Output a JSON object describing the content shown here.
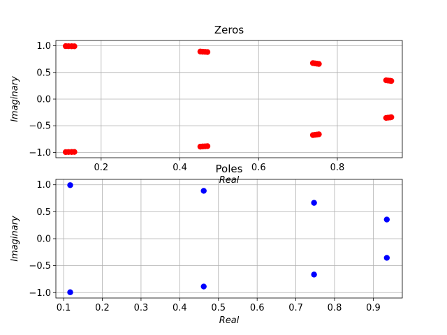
{
  "chart_data": [
    {
      "type": "scatter",
      "title": "Zeros",
      "xlabel": "Real",
      "ylabel": "Imaginary",
      "xlim": [
        0.085,
        0.965
      ],
      "ylim": [
        -1.1,
        1.1
      ],
      "xticks": [
        0.2,
        0.4,
        0.6,
        0.8
      ],
      "xtick_labels": [
        "0.2",
        "0.4",
        "0.6",
        "0.8"
      ],
      "yticks": [
        -1.0,
        -0.5,
        0.0,
        0.5,
        1.0
      ],
      "ytick_labels": [
        "−1.0",
        "−0.5",
        "0.0",
        "0.5",
        "1.0"
      ],
      "grid": true,
      "series": [
        {
          "color": "#ff0000",
          "points": [
            [
              0.11,
              0.994
            ],
            [
              0.117,
              0.993
            ],
            [
              0.125,
              0.992
            ],
            [
              0.132,
              0.991
            ],
            [
              0.11,
              -0.994
            ],
            [
              0.117,
              -0.993
            ],
            [
              0.125,
              -0.992
            ],
            [
              0.132,
              -0.991
            ],
            [
              0.452,
              0.892
            ],
            [
              0.458,
              0.889
            ],
            [
              0.464,
              0.886
            ],
            [
              0.47,
              0.883
            ],
            [
              0.452,
              -0.892
            ],
            [
              0.458,
              -0.889
            ],
            [
              0.464,
              -0.886
            ],
            [
              0.47,
              -0.883
            ],
            [
              0.738,
              0.675
            ],
            [
              0.743,
              0.67
            ],
            [
              0.748,
              0.665
            ],
            [
              0.753,
              0.66
            ],
            [
              0.738,
              -0.675
            ],
            [
              0.743,
              -0.67
            ],
            [
              0.748,
              -0.665
            ],
            [
              0.753,
              -0.66
            ],
            [
              0.924,
              0.353
            ],
            [
              0.929,
              0.348
            ],
            [
              0.934,
              0.344
            ],
            [
              0.937,
              0.34
            ],
            [
              0.924,
              -0.353
            ],
            [
              0.929,
              -0.348
            ],
            [
              0.934,
              -0.344
            ],
            [
              0.937,
              -0.34
            ]
          ]
        }
      ]
    },
    {
      "type": "scatter",
      "title": "Poles",
      "xlabel": "Real",
      "ylabel": "Imaginary",
      "xlim": [
        0.08,
        0.975
      ],
      "ylim": [
        -1.1,
        1.1
      ],
      "xticks": [
        0.1,
        0.2,
        0.3,
        0.4,
        0.5,
        0.6,
        0.7,
        0.8,
        0.9
      ],
      "xtick_labels": [
        "0.1",
        "0.2",
        "0.3",
        "0.4",
        "0.5",
        "0.6",
        "0.7",
        "0.8",
        "0.9"
      ],
      "yticks": [
        -1.0,
        -0.5,
        0.0,
        0.5,
        1.0
      ],
      "ytick_labels": [
        "−1.0",
        "−0.5",
        "0.0",
        "0.5",
        "1.0"
      ],
      "grid": true,
      "series": [
        {
          "color": "#0000ff",
          "points": [
            [
              0.117,
              0.993
            ],
            [
              0.117,
              -0.993
            ],
            [
              0.462,
              0.887
            ],
            [
              0.462,
              -0.887
            ],
            [
              0.747,
              0.665
            ],
            [
              0.747,
              -0.665
            ],
            [
              0.935,
              0.355
            ],
            [
              0.935,
              -0.355
            ]
          ]
        }
      ]
    }
  ]
}
